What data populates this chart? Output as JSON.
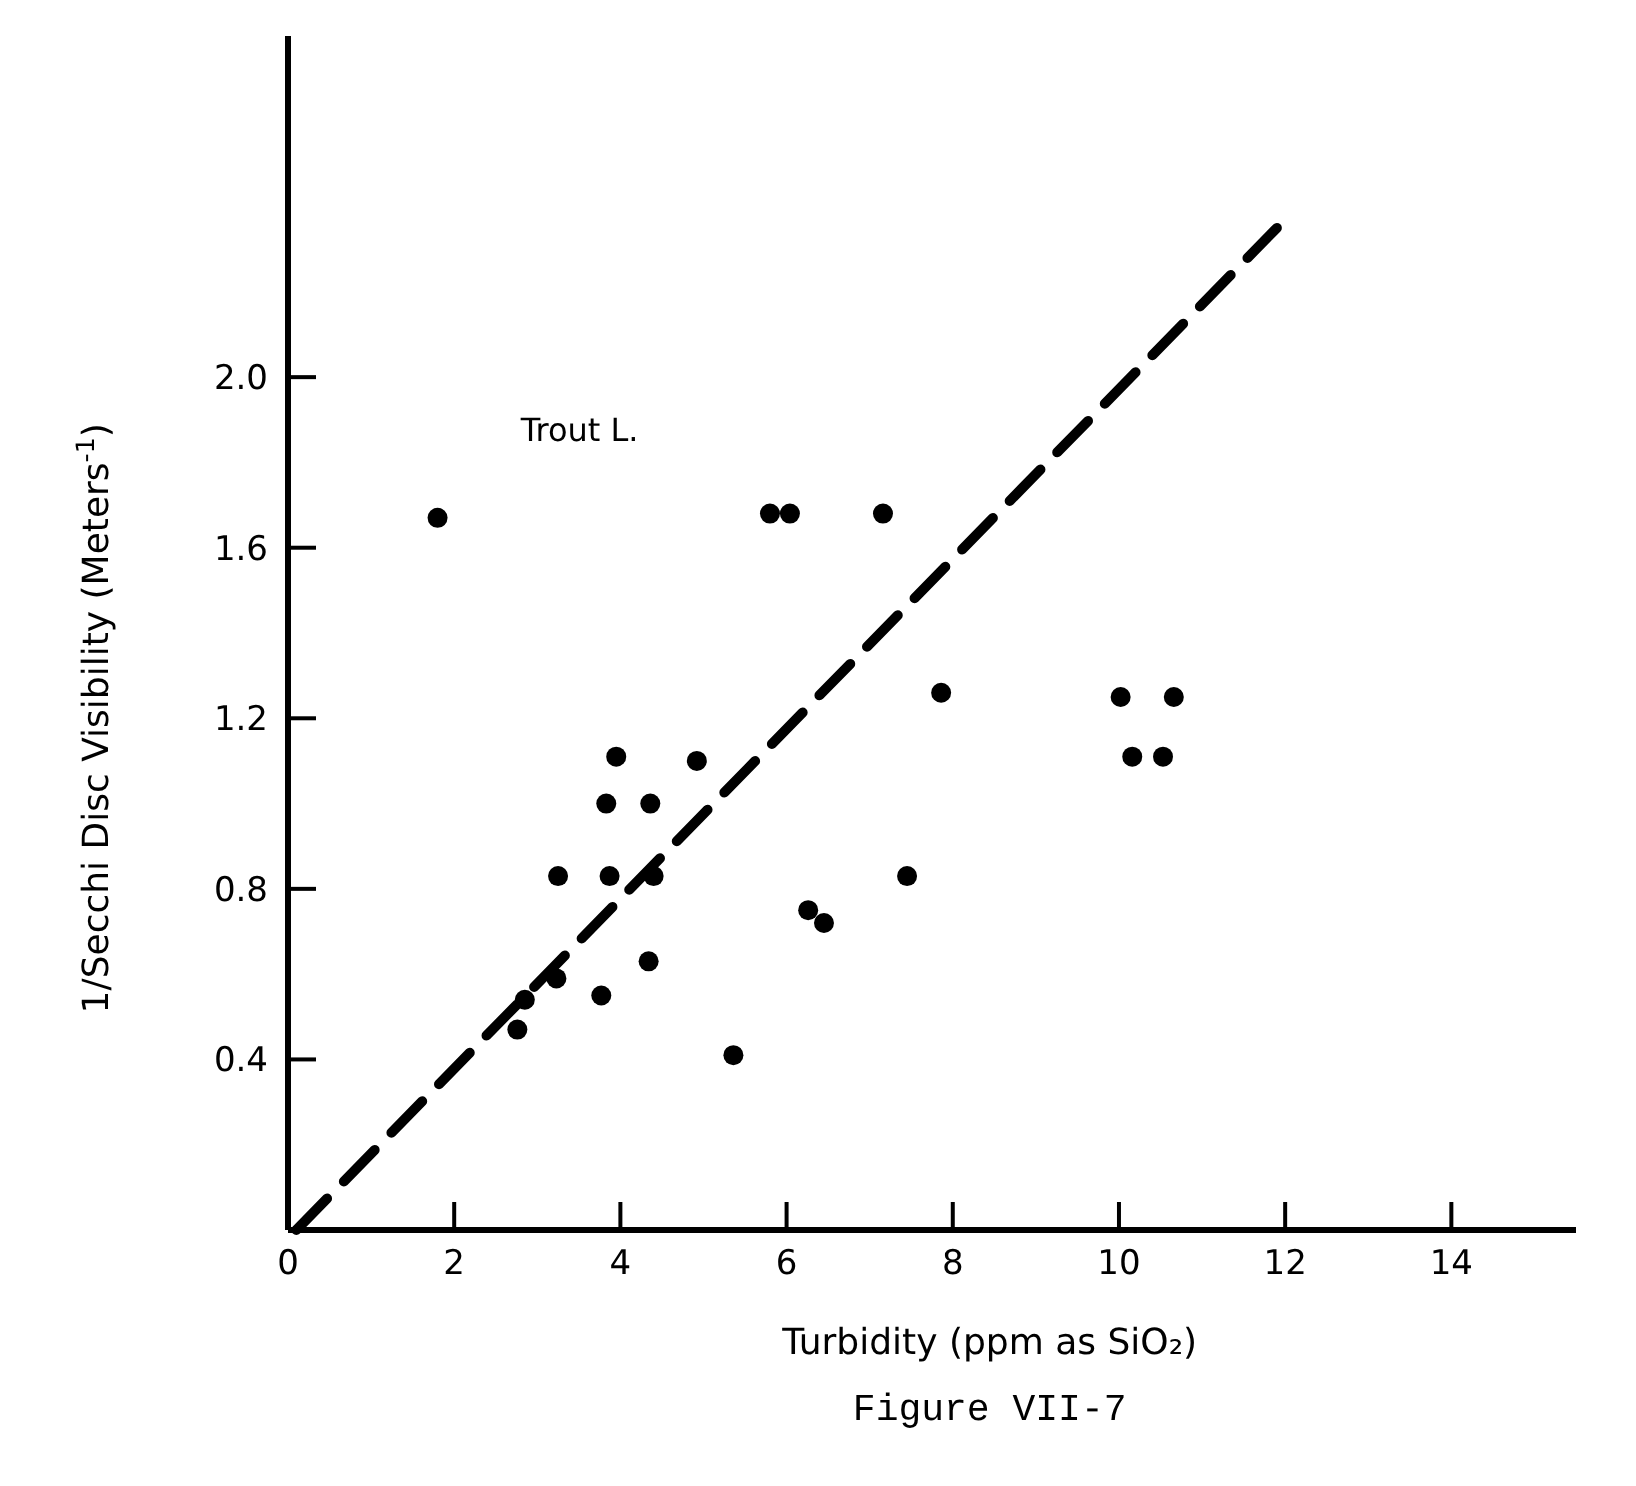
{
  "chart_data": {
    "type": "scatter",
    "xlabel": "Turbidity (ppm as SiO₂)",
    "ylabel": "1/Secchi Disc Visibility (Meters$^{-1}$)",
    "xlim": [
      0,
      15.5
    ],
    "ylim": [
      0,
      2.8
    ],
    "xticks": [
      0,
      2,
      4,
      6,
      8,
      10,
      12,
      14
    ],
    "yticks": [
      0.4,
      0.8,
      1.2,
      1.6,
      {
        "value": 2,
        "label": "2.0"
      }
    ],
    "grid": false,
    "series": [
      {
        "color": "#000000",
        "marker": "circle",
        "x": [
          1.8,
          5.8,
          6.04,
          7.16,
          7.86,
          3.95,
          4.92,
          3.83,
          4.36,
          3.25,
          3.87,
          4.4,
          4.34,
          3.77,
          3.23,
          2.76,
          2.85,
          5.36,
          6.26,
          6.45,
          7.45,
          10.02,
          10.66,
          10.16,
          10.53
        ],
        "values": [
          1.67,
          1.68,
          1.68,
          1.68,
          1.26,
          1.11,
          1.1,
          1.0,
          1.0,
          0.83,
          0.83,
          0.83,
          0.63,
          0.55,
          0.59,
          0.47,
          0.54,
          0.41,
          0.75,
          0.72,
          0.83,
          1.25,
          1.25,
          1.11,
          1.11
        ]
      },
      {
        "type": "line",
        "color": "#000000",
        "line_style": "dashed",
        "marker": "none",
        "x": [
          0.1,
          11.9
        ],
        "values": [
          0,
          2.35
        ]
      }
    ],
    "annotations": [
      "Trout L.",
      "Figure VII-7"
    ]
  }
}
